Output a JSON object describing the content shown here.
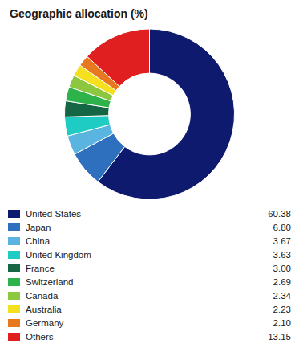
{
  "chart_data": {
    "type": "pie",
    "title": "Geographic allocation (%)",
    "categories": [
      "United States",
      "Japan",
      "China",
      "United Kingdom",
      "France",
      "Switzerland",
      "Canada",
      "Australia",
      "Germany",
      "Others"
    ],
    "values": [
      60.38,
      6.8,
      3.67,
      3.63,
      3.0,
      2.69,
      2.34,
      2.23,
      2.1,
      13.15
    ],
    "value_labels": [
      "60.38",
      "6.80",
      "3.67",
      "3.63",
      "3.00",
      "2.69",
      "2.34",
      "2.23",
      "2.10",
      "13.15"
    ],
    "colors": [
      "#0d1a6e",
      "#2e6fbe",
      "#5ab4e0",
      "#1eccc4",
      "#156644",
      "#2db34a",
      "#8dc63f",
      "#f5e020",
      "#e87820",
      "#e02020"
    ],
    "legend": "bottom"
  }
}
